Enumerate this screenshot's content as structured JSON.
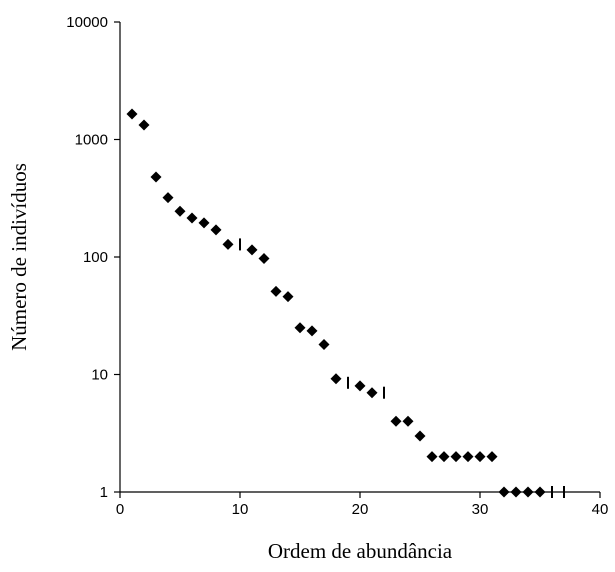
{
  "chart_data": {
    "type": "scatter",
    "title": "",
    "xlabel": "Ordem de abundância",
    "ylabel": "Número de indivíduos",
    "xlim": [
      0,
      40
    ],
    "ylim": [
      1,
      10000
    ],
    "yscale": "log",
    "grid": false,
    "legend": "none",
    "marker": "diamond",
    "marker_color": "#000000",
    "x_ticks": [
      0,
      10,
      20,
      30,
      40
    ],
    "x_tick_labels": [
      "0",
      "10",
      "20",
      "30",
      "40"
    ],
    "y_ticks": [
      1,
      10,
      100,
      1000,
      10000
    ],
    "y_tick_labels": [
      "1",
      "10",
      "100",
      "1000",
      "10000"
    ],
    "series": [
      {
        "marker": "diamond",
        "x": [
          1,
          2,
          3,
          4,
          5,
          6,
          7,
          8,
          9,
          11,
          12,
          13,
          14,
          15,
          16,
          17,
          18,
          20,
          21,
          23,
          24,
          25,
          26,
          27,
          28,
          29,
          30,
          31,
          32,
          33,
          34,
          35
        ],
        "y": [
          1650,
          1330,
          480,
          320,
          245,
          215,
          195,
          170,
          128,
          115,
          97,
          51,
          46,
          25,
          23.5,
          18,
          9.2,
          8.0,
          7.0,
          4.0,
          4.0,
          3.0,
          2,
          2,
          2,
          2,
          2,
          2,
          1,
          1,
          1,
          1
        ]
      },
      {
        "marker": "tick",
        "x": [
          10,
          19,
          22,
          36,
          37
        ],
        "y": [
          128,
          8.5,
          7.0,
          1,
          1
        ]
      }
    ]
  }
}
